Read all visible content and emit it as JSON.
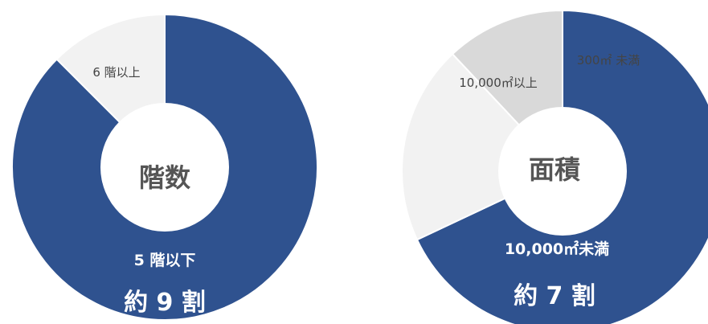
{
  "colors": {
    "major": "#2f528f",
    "light": "#f2f2f2",
    "grey": "#d9d9d9",
    "hole": "#ffffff"
  },
  "chart_data": [
    {
      "type": "pie",
      "title": "階数",
      "slices": [
        {
          "label": "5 階以下",
          "value": 87.5,
          "color_key": "major"
        },
        {
          "label": "6 階以上",
          "value": 12.5,
          "color_key": "light"
        }
      ],
      "share_label": "約 9 割"
    },
    {
      "type": "pie",
      "title": "面積",
      "slices": [
        {
          "label": "10,000㎡未満",
          "value": 68,
          "color_key": "major"
        },
        {
          "label": "10,000㎡以上",
          "value": 20,
          "color_key": "light"
        },
        {
          "label": "300㎡ 未満",
          "value": 12,
          "color_key": "grey"
        }
      ],
      "share_label": "約 7 割"
    }
  ]
}
